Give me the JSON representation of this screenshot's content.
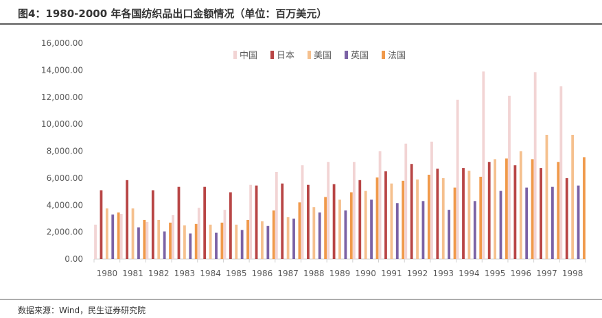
{
  "header": {
    "title": "图4：1980-2000 年各国纺织品出口金额情况（单位：百万美元）"
  },
  "footer": {
    "source": "数据来源：Wind，民生证券研究院"
  },
  "chart_data": {
    "type": "bar",
    "title": "图4：1980-2000 年各国纺织品出口金额情况（单位：百万美元）",
    "xlabel": "",
    "ylabel": "",
    "ylim": [
      0,
      16000
    ],
    "yticks": [
      0,
      2000,
      4000,
      6000,
      8000,
      10000,
      12000,
      14000,
      16000
    ],
    "ytick_labels": [
      "0.00",
      "2,000.00",
      "4,000.00",
      "6,000.00",
      "8,000.00",
      "10,000.00",
      "12,000.00",
      "14,000.00",
      "16,000.00"
    ],
    "grid": false,
    "legend_position": "top-center",
    "categories": [
      "1980",
      "1981",
      "1982",
      "1983",
      "1984",
      "1985",
      "1986",
      "1987",
      "1988",
      "1989",
      "1990",
      "1991",
      "1992",
      "1993",
      "1994",
      "1995",
      "1996",
      "1997",
      "1998"
    ],
    "series": [
      {
        "name": "中国",
        "color": "#f2d4d4",
        "values": [
          2550,
          3350,
          2750,
          3250,
          3800,
          3650,
          5500,
          6450,
          6950,
          7200,
          7200,
          8000,
          8550,
          8700,
          11800,
          13900,
          12100,
          13850,
          12800
        ]
      },
      {
        "name": "日本",
        "color": "#b84545",
        "values": [
          5100,
          5850,
          5100,
          5350,
          5350,
          4950,
          5450,
          5600,
          5500,
          5550,
          5850,
          6500,
          7050,
          6700,
          6750,
          7200,
          6950,
          6750,
          6000
        ]
      },
      {
        "name": "美国",
        "color": "#f5c08e",
        "values": [
          3750,
          3750,
          2900,
          2500,
          2550,
          2550,
          2800,
          3100,
          3850,
          4400,
          5050,
          5600,
          5900,
          6000,
          6550,
          7400,
          8000,
          9200,
          9200
        ]
      },
      {
        "name": "英国",
        "color": "#7b62a5",
        "values": [
          3300,
          2350,
          2050,
          1900,
          1950,
          2150,
          2450,
          3000,
          3450,
          3600,
          4400,
          4150,
          4300,
          3650,
          4300,
          5050,
          5300,
          5350,
          5450
        ]
      },
      {
        "name": "法国",
        "color": "#f0994a",
        "values": [
          3450,
          2900,
          2700,
          2600,
          2700,
          2900,
          3600,
          4200,
          4600,
          4950,
          6050,
          5800,
          6250,
          5300,
          6100,
          7450,
          7400,
          7200,
          7550
        ]
      }
    ]
  }
}
